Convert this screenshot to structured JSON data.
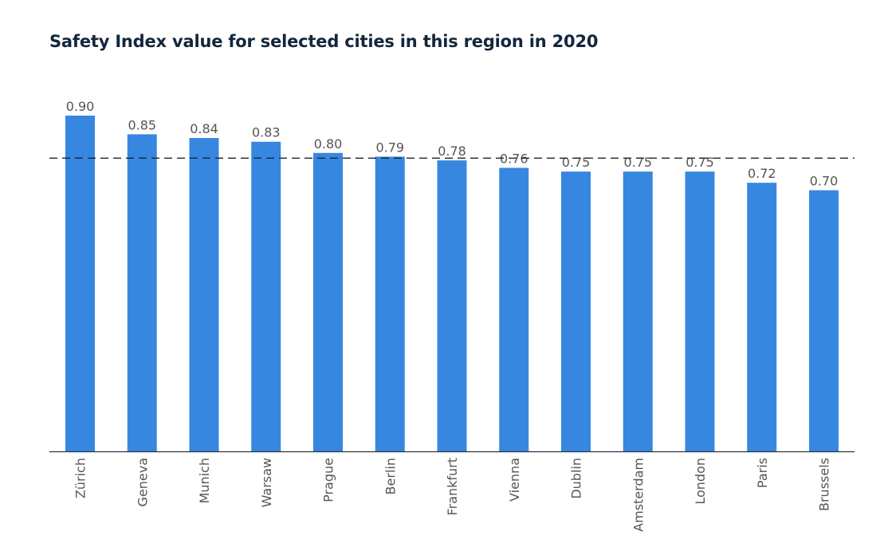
{
  "chart_data": {
    "type": "bar",
    "title": "Safety Index value for selected cities in this region in 2020",
    "xlabel": "",
    "ylabel": "",
    "ylim": [
      0,
      0.9
    ],
    "grid": false,
    "categories": [
      "Zürich",
      "Geneva",
      "Munich",
      "Warsaw",
      "Prague",
      "Berlin",
      "Frankfurt",
      "Vienna",
      "Dublin",
      "Amsterdam",
      "London",
      "Paris",
      "Brussels"
    ],
    "values": [
      0.9,
      0.85,
      0.84,
      0.83,
      0.8,
      0.79,
      0.78,
      0.76,
      0.75,
      0.75,
      0.75,
      0.72,
      0.7
    ],
    "value_labels": [
      "0.90",
      "0.85",
      "0.84",
      "0.83",
      "0.80",
      "0.79",
      "0.78",
      "0.76",
      "0.75",
      "0.75",
      "0.75",
      "0.72",
      "0.70"
    ],
    "reference_line": 0.786,
    "bar_color": "#3787e0"
  }
}
